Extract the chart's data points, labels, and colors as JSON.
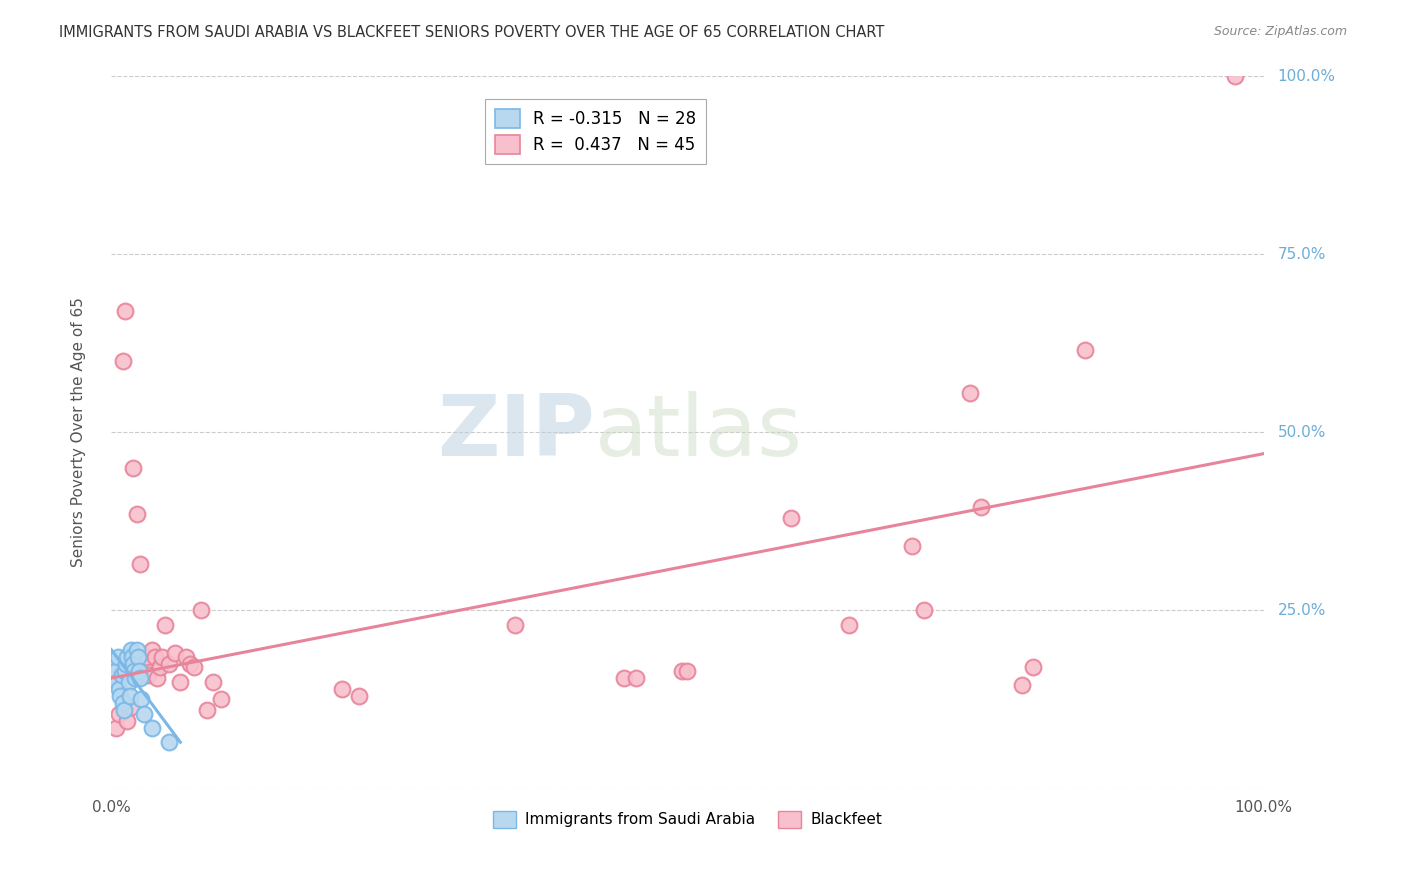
{
  "title": "IMMIGRANTS FROM SAUDI ARABIA VS BLACKFEET SENIORS POVERTY OVER THE AGE OF 65 CORRELATION CHART",
  "source": "Source: ZipAtlas.com",
  "ylabel": "Seniors Poverty Over the Age of 65",
  "xlim": [
    0,
    1
  ],
  "ylim": [
    0,
    1
  ],
  "legend_entries": [
    {
      "label": "Immigrants from Saudi Arabia",
      "color": "#a8c8f0",
      "R": "-0.315",
      "N": "28"
    },
    {
      "label": "Blackfeet",
      "color": "#f4a0b0",
      "R": "0.437",
      "N": "45"
    }
  ],
  "watermark_zip": "ZIP",
  "watermark_atlas": "atlas",
  "blue_scatter": [
    [
      0.002,
      0.155
    ],
    [
      0.003,
      0.175
    ],
    [
      0.004,
      0.165
    ],
    [
      0.005,
      0.15
    ],
    [
      0.006,
      0.185
    ],
    [
      0.007,
      0.14
    ],
    [
      0.008,
      0.13
    ],
    [
      0.009,
      0.16
    ],
    [
      0.01,
      0.12
    ],
    [
      0.011,
      0.11
    ],
    [
      0.012,
      0.165
    ],
    [
      0.013,
      0.175
    ],
    [
      0.014,
      0.185
    ],
    [
      0.015,
      0.15
    ],
    [
      0.016,
      0.13
    ],
    [
      0.017,
      0.195
    ],
    [
      0.018,
      0.185
    ],
    [
      0.019,
      0.175
    ],
    [
      0.02,
      0.165
    ],
    [
      0.021,
      0.155
    ],
    [
      0.022,
      0.195
    ],
    [
      0.023,
      0.185
    ],
    [
      0.024,
      0.165
    ],
    [
      0.025,
      0.155
    ],
    [
      0.026,
      0.125
    ],
    [
      0.028,
      0.105
    ],
    [
      0.035,
      0.085
    ],
    [
      0.05,
      0.065
    ]
  ],
  "pink_scatter": [
    [
      0.004,
      0.085
    ],
    [
      0.007,
      0.105
    ],
    [
      0.01,
      0.6
    ],
    [
      0.012,
      0.67
    ],
    [
      0.014,
      0.095
    ],
    [
      0.017,
      0.115
    ],
    [
      0.019,
      0.45
    ],
    [
      0.022,
      0.385
    ],
    [
      0.025,
      0.315
    ],
    [
      0.028,
      0.175
    ],
    [
      0.03,
      0.185
    ],
    [
      0.032,
      0.16
    ],
    [
      0.035,
      0.195
    ],
    [
      0.038,
      0.185
    ],
    [
      0.04,
      0.155
    ],
    [
      0.042,
      0.17
    ],
    [
      0.044,
      0.185
    ],
    [
      0.047,
      0.23
    ],
    [
      0.05,
      0.175
    ],
    [
      0.055,
      0.19
    ],
    [
      0.06,
      0.15
    ],
    [
      0.065,
      0.185
    ],
    [
      0.068,
      0.175
    ],
    [
      0.072,
      0.17
    ],
    [
      0.078,
      0.25
    ],
    [
      0.083,
      0.11
    ],
    [
      0.088,
      0.15
    ],
    [
      0.095,
      0.125
    ],
    [
      0.2,
      0.14
    ],
    [
      0.215,
      0.13
    ],
    [
      0.35,
      0.23
    ],
    [
      0.445,
      0.155
    ],
    [
      0.455,
      0.155
    ],
    [
      0.495,
      0.165
    ],
    [
      0.5,
      0.165
    ],
    [
      0.59,
      0.38
    ],
    [
      0.64,
      0.23
    ],
    [
      0.695,
      0.34
    ],
    [
      0.705,
      0.25
    ],
    [
      0.745,
      0.555
    ],
    [
      0.755,
      0.395
    ],
    [
      0.79,
      0.145
    ],
    [
      0.8,
      0.17
    ],
    [
      0.845,
      0.615
    ],
    [
      0.975,
      1.0
    ]
  ],
  "blue_line": [
    [
      0.0,
      0.195
    ],
    [
      0.06,
      0.065
    ]
  ],
  "pink_line": [
    [
      0.0,
      0.155
    ],
    [
      1.0,
      0.47
    ]
  ],
  "scatter_size": 130,
  "line_width": 2.2,
  "blue_color": "#7ab8e8",
  "blue_fill": "#b8d8f0",
  "pink_color": "#e8849a",
  "pink_fill": "#f8c0cc",
  "background_color": "#ffffff",
  "grid_color": "#cccccc",
  "title_color": "#333333",
  "right_label_color": "#6baed6"
}
